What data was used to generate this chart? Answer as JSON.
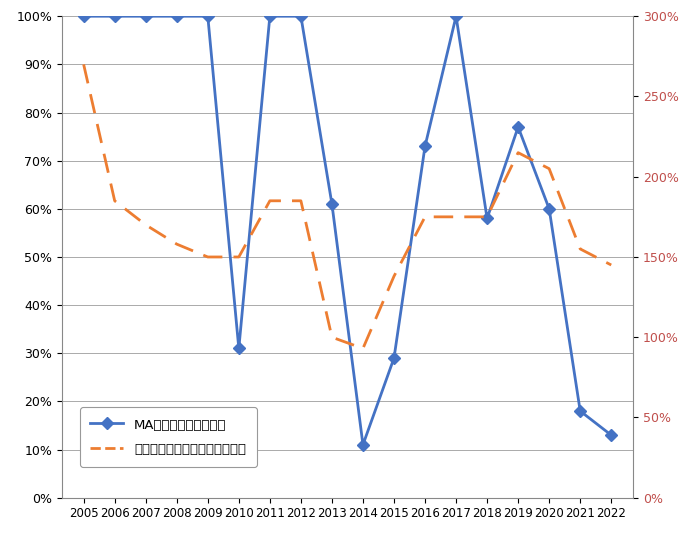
{
  "years": [
    2005,
    2006,
    2007,
    2008,
    2009,
    2010,
    2011,
    2012,
    2013,
    2014,
    2015,
    2016,
    2017,
    2018,
    2019,
    2020,
    2021,
    2022
  ],
  "ma_ratio": [
    1.0,
    1.0,
    1.0,
    1.0,
    1.0,
    0.31,
    1.0,
    1.0,
    0.61,
    0.11,
    0.29,
    0.73,
    1.0,
    0.58,
    0.77,
    0.6,
    0.18,
    0.13
  ],
  "price_ratio": [
    2.7,
    1.85,
    1.7,
    1.58,
    1.5,
    1.5,
    1.85,
    1.85,
    1.0,
    0.93,
    1.38,
    1.75,
    1.75,
    1.75,
    2.15,
    2.05,
    1.55,
    1.45
  ],
  "ma_color": "#4472C4",
  "price_color": "#ED7D31",
  "left_label": "MA米落札割合（左軸）",
  "right_label": "日本米の対アメリカ産米価格比",
  "ylim_left": [
    0,
    1.0
  ],
  "ylim_right": [
    0,
    3.0
  ],
  "yticks_left": [
    0.0,
    0.1,
    0.2,
    0.3,
    0.4,
    0.5,
    0.6,
    0.7,
    0.8,
    0.9,
    1.0
  ],
  "yticks_right": [
    0.0,
    0.5,
    1.0,
    1.5,
    2.0,
    2.5,
    3.0
  ],
  "background_color": "#FFFFFF",
  "grid_color": "#AAAAAA",
  "right_tick_color": "#C0504D",
  "marker_style": "D",
  "marker_size": 6,
  "linewidth": 2.0,
  "figsize": [
    6.88,
    5.41
  ],
  "dpi": 100
}
